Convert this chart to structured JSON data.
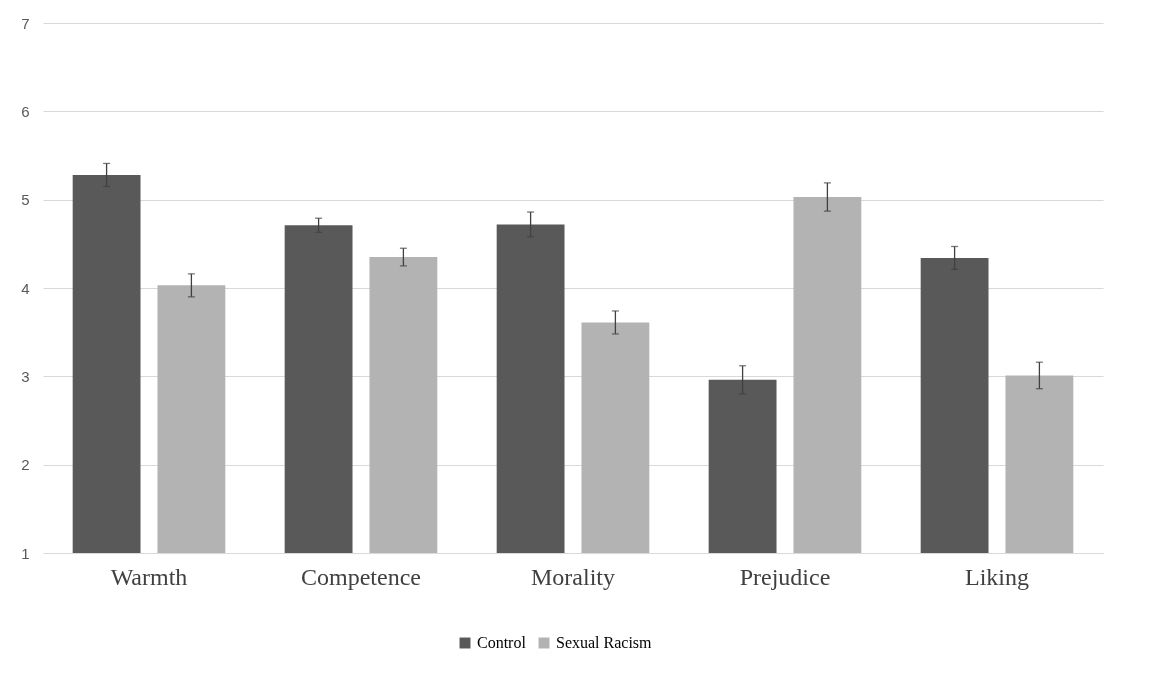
{
  "chart_data": {
    "type": "bar",
    "categories": [
      "Warmth",
      "Competence",
      "Morality",
      "Prejudice",
      "Liking"
    ],
    "series": [
      {
        "name": "Control",
        "color": "#595959",
        "values": [
          5.28,
          4.71,
          4.72,
          2.96,
          4.34
        ],
        "errors": [
          0.13,
          0.08,
          0.14,
          0.16,
          0.13
        ]
      },
      {
        "name": "Sexual Racism",
        "color": "#b3b3b3",
        "values": [
          4.03,
          4.35,
          3.61,
          5.03,
          3.01
        ],
        "errors": [
          0.13,
          0.1,
          0.13,
          0.16,
          0.15
        ]
      }
    ],
    "ylim": [
      1,
      7
    ],
    "yticks": [
      1,
      2,
      3,
      4,
      5,
      6,
      7
    ],
    "grid": "y",
    "legend": "bottom"
  }
}
